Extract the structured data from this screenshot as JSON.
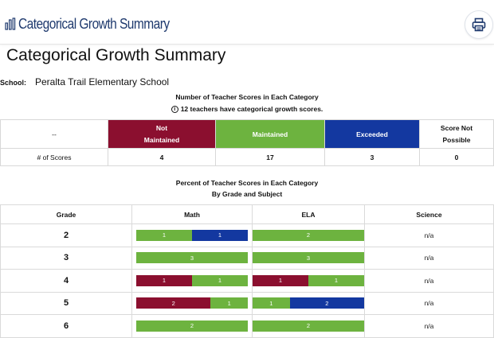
{
  "header": {
    "app_title": "Categorical Growth Summary",
    "print_icon": "printer-icon"
  },
  "page": {
    "title": "Categorical Growth Summary",
    "school_label": "School:",
    "school_name": "Peralta Trail Elementary School"
  },
  "counts_section": {
    "title": "Number of Teacher Scores in Each Category",
    "info": "12 teachers have categorical growth scores.",
    "columns": [
      "--",
      "Not\nMaintained",
      "Maintained",
      "Exceeded",
      "Score Not\nPossible"
    ],
    "row_label": "# of Scores",
    "values": [
      "4",
      "17",
      "3",
      "0"
    ]
  },
  "percent_section": {
    "title": "Percent of Teacher Scores in Each Category",
    "subtitle": "By Grade and Subject",
    "columns": [
      "Grade",
      "Math",
      "ELA",
      "Science"
    ],
    "rows": [
      {
        "grade": "2",
        "math": [
          {
            "cat": "mt",
            "value": 1
          },
          {
            "cat": "ex",
            "value": 1
          }
        ],
        "ela": [
          {
            "cat": "mt",
            "value": 2
          }
        ],
        "science": "n/a"
      },
      {
        "grade": "3",
        "math": [
          {
            "cat": "mt",
            "value": 3
          }
        ],
        "ela": [
          {
            "cat": "mt",
            "value": 3
          }
        ],
        "science": "n/a"
      },
      {
        "grade": "4",
        "math": [
          {
            "cat": "nm",
            "value": 1
          },
          {
            "cat": "mt",
            "value": 1
          }
        ],
        "ela": [
          {
            "cat": "nm",
            "value": 1
          },
          {
            "cat": "mt",
            "value": 1
          }
        ],
        "science": "n/a"
      },
      {
        "grade": "5",
        "math": [
          {
            "cat": "nm",
            "value": 2
          },
          {
            "cat": "mt",
            "value": 1
          }
        ],
        "ela": [
          {
            "cat": "mt",
            "value": 1
          },
          {
            "cat": "ex",
            "value": 2
          }
        ],
        "science": "n/a"
      },
      {
        "grade": "6",
        "math": [
          {
            "cat": "mt",
            "value": 2
          }
        ],
        "ela": [
          {
            "cat": "mt",
            "value": 2
          }
        ],
        "science": "n/a"
      }
    ]
  },
  "colors": {
    "not_maintained": "#8b0f2f",
    "maintained": "#6db33f",
    "exceeded": "#1338a0",
    "brand": "#1f3a6e"
  }
}
